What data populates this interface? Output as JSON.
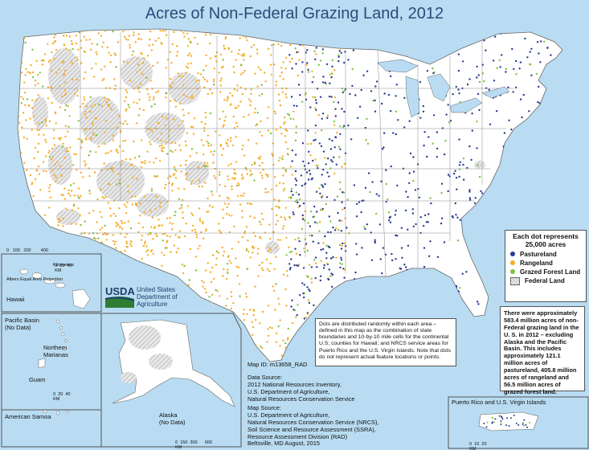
{
  "title": "Acres of Non-Federal Grazing Land, 2012",
  "colors": {
    "ocean": "#b9dcf2",
    "land": "#ffffff",
    "pastureland": "#2b3a8f",
    "rangeland": "#f4ad2b",
    "grazed_forest": "#7cc243",
    "federal_land": "#cccccc",
    "title": "#2c4b7a"
  },
  "legend": {
    "header_line1": "Each dot represents",
    "header_line2": "25,000 acres",
    "items": [
      {
        "label": "Pastureland",
        "color": "#2b3a8f"
      },
      {
        "label": "Rangeland",
        "color": "#f4ad2b"
      },
      {
        "label": "Grazed Forest Land",
        "color": "#7cc243"
      }
    ],
    "federal_label": "Federal Land"
  },
  "stats_text": "There were approximately 583.4 million acres of non-Federal grazing land in the U. S. in 2012 – excluding Alaska and the Pacific Basin. This includes approximately 121.1 million acres of pastureland, 405.8 million acres of rangeland and 56.5 million acres of grazed forest land.",
  "note_text": "Dots are distributed randomly within each area – defined in this map as the combination of state boundaries and 10-by-10 mile cells for the continental U.S; counties for Hawaii; and NRCS service areas for Puerto Rico and the U.S. Virgin Islands. Note that dots do not represent actual feature locations or points.",
  "map_id": "Map ID:   m13658_RAD",
  "data_source": {
    "heading": "Data Source:",
    "lines": [
      "2012 National Resources Inventory,",
      "U.S. Department of Agriculture,",
      "Natural Resources Conservation Service"
    ]
  },
  "map_source": {
    "heading": "Map Source:",
    "lines": [
      "U.S. Department of Agriculture,",
      "Natural Resources Conservation Service (NRCS),",
      "Soil Science and Resource Assessment (SSRA),",
      "Resource Assessment Division (RAD)",
      "Beltsville, MD     August, 2015"
    ]
  },
  "usda": {
    "logo": "USDA",
    "line1": "United States",
    "line2": "Department of",
    "line3": "Agriculture"
  },
  "scale_conus": {
    "ticks": "0   100   200        400",
    "unit": "Kilometers",
    "projection": "Albers Equal Area Projection"
  },
  "scale_hawaii": {
    "ticks": "0  20  40",
    "unit": "KM"
  },
  "scale_pacific": {
    "ticks": "0  20  40",
    "unit": "KM"
  },
  "scale_alaska": {
    "ticks": "0  150  300      600",
    "unit": "KM"
  },
  "scale_pr": {
    "ticks": "0  10  20",
    "unit": "KM"
  },
  "inset_labels": {
    "hawaii": "Hawaii",
    "pacific": "Pacific Basin\n(No Data)",
    "marianas": "Northern\nMarianas",
    "guam": "Guam",
    "samoa": "American Samoa",
    "alaska": "Alaska\n(No Data)",
    "pr": "Puerto Rico and U.S. Virgin Islands"
  }
}
